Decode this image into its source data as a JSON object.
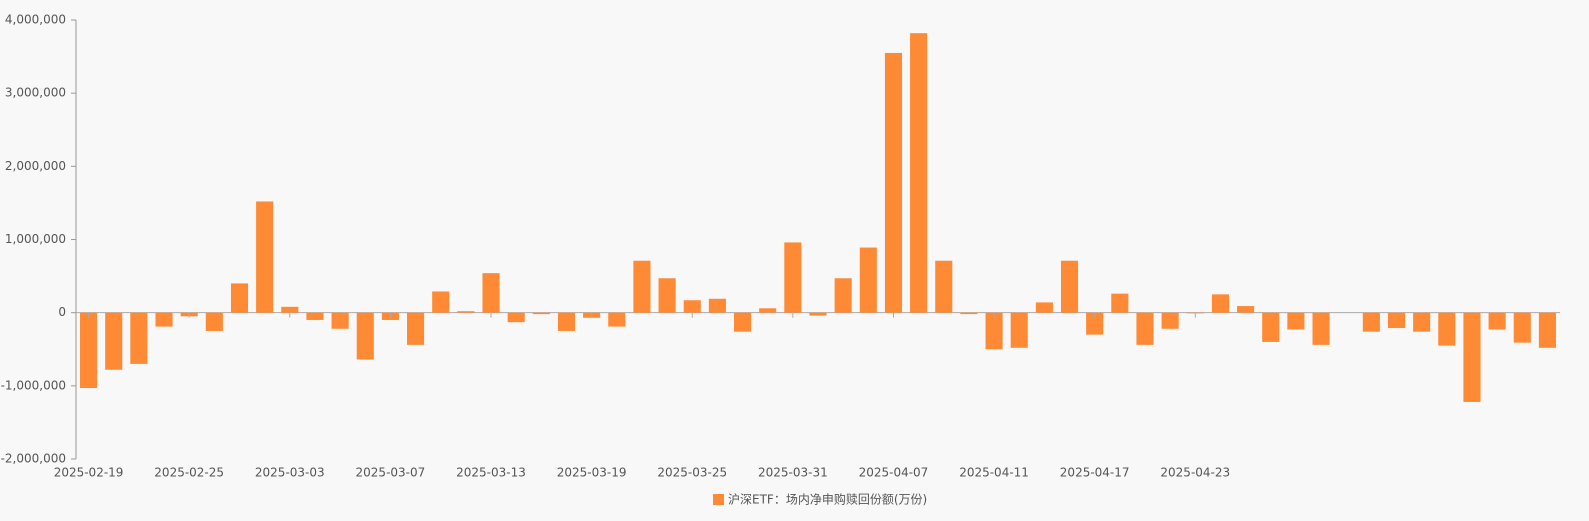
{
  "chart_data": {
    "type": "bar",
    "categories": [
      "2025-02-19",
      null,
      null,
      null,
      "2025-02-25",
      null,
      null,
      null,
      "2025-03-03",
      null,
      null,
      null,
      "2025-03-07",
      null,
      null,
      null,
      "2025-03-13",
      null,
      null,
      null,
      "2025-03-19",
      null,
      null,
      null,
      "2025-03-25",
      null,
      null,
      null,
      "2025-03-31",
      null,
      null,
      null,
      "2025-04-07",
      null,
      null,
      null,
      "2025-04-11",
      null,
      null,
      null,
      "2025-04-17",
      null,
      null,
      null,
      "2025-04-23",
      null,
      null,
      null,
      null,
      null,
      null,
      null,
      null,
      null,
      null,
      null,
      null,
      null,
      null
    ],
    "series": [
      {
        "name": "沪深ETF：场内净申购赎回份额(万份)",
        "color": "#ff8a35",
        "values": [
          -1030000,
          -780000,
          -700000,
          -190000,
          -50000,
          -250000,
          400000,
          1520000,
          80000,
          -100000,
          -220000,
          -640000,
          -100000,
          -440000,
          290000,
          20000,
          540000,
          -130000,
          -20000,
          -250000,
          -70000,
          -190000,
          710000,
          470000,
          170000,
          190000,
          -260000,
          60000,
          960000,
          -40000,
          470000,
          890000,
          3550000,
          3820000,
          710000,
          -20000,
          -500000,
          -480000,
          140000,
          710000,
          -300000,
          260000,
          -440000,
          -220000,
          -10000,
          250000,
          90000,
          -400000,
          -230000,
          -440000,
          0,
          -260000,
          -210000,
          -260000,
          -450000,
          -1220000,
          -230000,
          -410000,
          -480000
        ]
      }
    ],
    "ylim": [
      -2000000,
      4000000
    ],
    "yticks": [
      {
        "value": -2000000,
        "label": "-2,000,000"
      },
      {
        "value": -1000000,
        "label": "-1,000,000"
      },
      0,
      {
        "value": 1000000,
        "label": "1,000,000"
      },
      {
        "value": 2000000,
        "label": "2,000,000"
      },
      {
        "value": 3000000,
        "label": "3,000,000"
      },
      {
        "value": 4000000,
        "label": "4,000,000"
      }
    ]
  }
}
